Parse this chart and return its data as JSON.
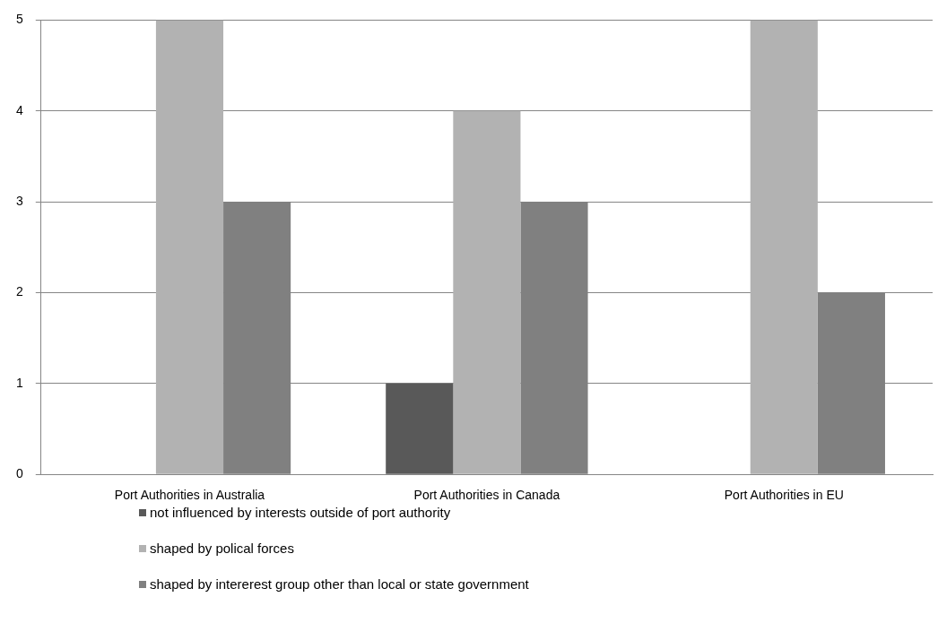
{
  "chart_data": {
    "type": "bar",
    "categories": [
      "Port Authorities in Australia",
      "Port Authorities in Canada",
      "Port Authorities in EU"
    ],
    "series": [
      {
        "name": "not influenced by interests outside of port authority",
        "color": "#595959",
        "values": [
          0,
          1,
          0
        ]
      },
      {
        "name": "shaped by polical forces",
        "color": "#b2b2b2",
        "values": [
          5,
          4,
          5
        ]
      },
      {
        "name": "shaped by intererest  group other than local or state government",
        "color": "#808080",
        "values": [
          3,
          3,
          2
        ]
      }
    ],
    "ylim": [
      0,
      5
    ],
    "yticks": [
      0,
      1,
      2,
      3,
      4,
      5
    ],
    "grid": "y",
    "legend": "bottom"
  }
}
